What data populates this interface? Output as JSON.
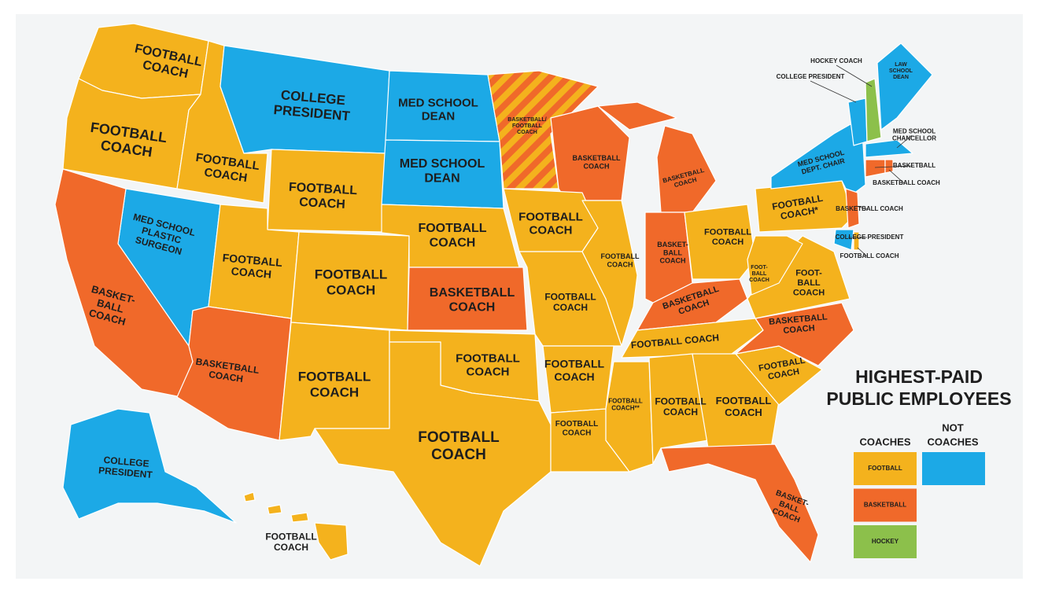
{
  "title": [
    "HIGHEST-PAID",
    "PUBLIC EMPLOYEES"
  ],
  "legend": {
    "coaches": "COACHES",
    "not_coaches": [
      "NOT",
      "COACHES"
    ],
    "not_coaches_color": "#1ca9e6",
    "items": [
      {
        "label": "FOOTBALL",
        "color": "#f4b21d"
      },
      {
        "label": "BASKETBALL",
        "color": "#f0692a"
      },
      {
        "label": "HOCKEY",
        "color": "#8cc04b"
      }
    ]
  },
  "states": [
    {
      "lines": [
        "FOOTBALL",
        "COACH"
      ],
      "color": "#f4b21d"
    },
    {
      "lines": [
        "FOOTBALL",
        "COACH"
      ],
      "color": "#f4b21d"
    },
    {
      "lines": [
        "FOOTBALL",
        "COACH"
      ],
      "color": "#f4b21d"
    },
    {
      "lines": [
        "COLLEGE",
        "PRESIDENT"
      ],
      "color": "#1ca9e6"
    },
    {
      "lines": [
        "FOOTBALL",
        "COACH"
      ],
      "color": "#f4b21d"
    },
    {
      "lines": [
        "MED SCHOOL",
        "DEAN"
      ],
      "color": "#1ca9e6"
    },
    {
      "lines": [
        "MED SCHOOL",
        "DEAN"
      ],
      "color": "#1ca9e6"
    },
    {
      "lines": [
        "BASKETBALL/",
        "FOOTBALL",
        "COACH"
      ],
      "color": "#f4b21d",
      "stripe": "#f0692a"
    },
    {
      "lines": [
        "BASKETBALL",
        "COACH"
      ],
      "color": "#f0692a"
    },
    {
      "lines": [
        "BASKETBALL",
        "COACH"
      ],
      "color": "#f0692a"
    },
    {
      "lines": [
        "MED SCHOOL",
        "PLASTIC",
        "SURGEON"
      ],
      "color": "#1ca9e6"
    },
    {
      "lines": [
        "BASKET-",
        "BALL",
        "COACH"
      ],
      "color": "#f0692a"
    },
    {
      "lines": [
        "FOOTBALL",
        "COACH"
      ],
      "color": "#f4b21d"
    },
    {
      "lines": [
        "FOOTBALL",
        "COACH"
      ],
      "color": "#f4b21d"
    },
    {
      "lines": [
        "FOOTBALL",
        "COACH"
      ],
      "color": "#f4b21d"
    },
    {
      "lines": [
        "BASKETBALL",
        "COACH"
      ],
      "color": "#f0692a"
    },
    {
      "lines": [
        "BASKETBALL",
        "COACH"
      ],
      "color": "#f0692a"
    },
    {
      "lines": [
        "FOOTBALL",
        "COACH"
      ],
      "color": "#f4b21d"
    },
    {
      "lines": [
        "FOOTBALL",
        "COACH"
      ],
      "color": "#f4b21d"
    },
    {
      "lines": [
        "FOOTBALL",
        "COACH"
      ],
      "color": "#f4b21d"
    },
    {
      "lines": [
        "FOOTBALL",
        "COACH"
      ],
      "color": "#f4b21d"
    },
    {
      "lines": [
        "FOOTBALL",
        "COACH"
      ],
      "color": "#f4b21d"
    },
    {
      "lines": [
        "FOOTBALL",
        "COACH"
      ],
      "color": "#f4b21d"
    },
    {
      "lines": [
        "FOOTBALL",
        "COACH"
      ],
      "color": "#f4b21d"
    },
    {
      "lines": [
        "FOOTBALL",
        "COACH"
      ],
      "color": "#f4b21d"
    },
    {
      "lines": [
        "BASKET-",
        "BALL",
        "COACH"
      ],
      "color": "#f0692a"
    },
    {
      "lines": [
        "FOOTBALL",
        "COACH"
      ],
      "color": "#f4b21d"
    },
    {
      "lines": [
        "BASKETBALL",
        "COACH"
      ],
      "color": "#f0692a"
    },
    {
      "lines": [
        "FOOTBALL COACH"
      ],
      "color": "#f4b21d"
    },
    {
      "lines": [
        "FOOTBALL",
        "COACH**"
      ],
      "color": "#f4b21d"
    },
    {
      "lines": [
        "FOOTBALL",
        "COACH"
      ],
      "color": "#f4b21d"
    },
    {
      "lines": [
        "FOOTBALL",
        "COACH"
      ],
      "color": "#f4b21d"
    },
    {
      "lines": [
        "BASKET-",
        "BALL",
        "COACH"
      ],
      "color": "#f0692a"
    },
    {
      "lines": [
        "FOOTBALL",
        "COACH"
      ],
      "color": "#f4b21d"
    },
    {
      "lines": [
        "BASKETBALL",
        "COACH"
      ],
      "color": "#f0692a"
    },
    {
      "lines": [
        "FOOT-",
        "BALL",
        "COACH"
      ],
      "color": "#f4b21d"
    },
    {
      "lines": [
        "FOOT-",
        "BALL",
        "COACH"
      ],
      "color": "#f4b21d"
    },
    {
      "lines": [
        "FOOTBALL",
        "COACH*"
      ],
      "color": "#f4b21d"
    },
    {
      "lines": [
        "MED SCHOOL",
        "DEPT. CHAIR"
      ],
      "color": "#1ca9e6"
    },
    {
      "lines": [
        "BASKETBALL COACH"
      ],
      "color": "#f0692a"
    },
    {
      "lines": [
        "COLLEGE PRESIDENT"
      ],
      "color": "#1ca9e6"
    },
    {
      "lines": [
        "FOOTBALL COACH"
      ],
      "color": "#f4b21d"
    },
    {
      "lines": [
        "COLLEGE PRESIDENT"
      ],
      "color": "#1ca9e6"
    },
    {
      "lines": [
        "HOCKEY COACH"
      ],
      "color": "#8cc04b"
    },
    {
      "lines": [
        "LAW",
        "SCHOOL",
        "DEAN"
      ],
      "color": "#1ca9e6"
    },
    {
      "lines": [
        "MED SCHOOL",
        "CHANCELLOR"
      ],
      "color": "#1ca9e6"
    },
    {
      "lines": [
        "BASKETBALL"
      ],
      "color": "#f0692a"
    },
    {
      "lines": [
        "BASKETBALL COACH"
      ],
      "color": "#f0692a"
    },
    {
      "lines": [
        "COLLEGE",
        "PRESIDENT"
      ],
      "color": "#1ca9e6"
    },
    {
      "lines": [
        "FOOTBALL",
        "COACH"
      ],
      "color": "#f4b21d"
    }
  ]
}
